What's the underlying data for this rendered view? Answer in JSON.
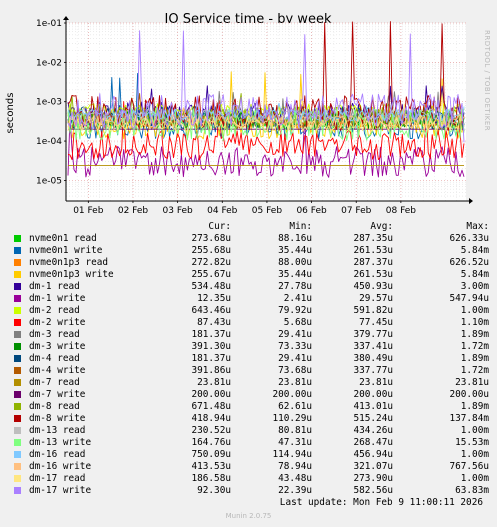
{
  "chart_data": {
    "type": "line",
    "title": "IO Service time - by week",
    "ylabel": "seconds",
    "side_text": "RRDTOOL / TOBI OETIKER",
    "y_scale": "log",
    "ylim": [
      3e-06,
      0.1
    ],
    "y_ticks": [
      {
        "value": 0.1,
        "label": "1e-01"
      },
      {
        "value": 0.01,
        "label": "1e-02"
      },
      {
        "value": 0.001,
        "label": "1e-03"
      },
      {
        "value": 0.0001,
        "label": "1e-04"
      },
      {
        "value": 1e-05,
        "label": "1e-05"
      }
    ],
    "x_start": "2026-01-31T12:00",
    "x_end": "2026-02-09T11:00",
    "x_ticks": [
      {
        "value": "2026-02-01",
        "label": "01 Feb"
      },
      {
        "value": "2026-02-02",
        "label": "02 Feb"
      },
      {
        "value": "2026-02-03",
        "label": "03 Feb"
      },
      {
        "value": "2026-02-04",
        "label": "04 Feb"
      },
      {
        "value": "2026-02-05",
        "label": "05 Feb"
      },
      {
        "value": "2026-02-06",
        "label": "06 Feb"
      },
      {
        "value": "2026-02-07",
        "label": "07 Feb"
      },
      {
        "value": "2026-02-08",
        "label": "08 Feb"
      }
    ],
    "grid": true,
    "legend_columns": {
      "cur": "Cur:",
      "min": "Min:",
      "avg": "Avg:",
      "max": "Max:"
    },
    "series": [
      {
        "name": "nvme0n1 read",
        "color": "#00cc00",
        "cur": "273.68u",
        "min": "88.16u",
        "avg": "287.35u",
        "max": "626.33u"
      },
      {
        "name": "nvme0n1 write",
        "color": "#0066b3",
        "cur": "255.68u",
        "min": "35.44u",
        "avg": "261.53u",
        "max": "5.84m"
      },
      {
        "name": "nvme0n1p3 read",
        "color": "#ff8000",
        "cur": "272.82u",
        "min": "88.00u",
        "avg": "287.37u",
        "max": "626.52u"
      },
      {
        "name": "nvme0n1p3 write",
        "color": "#ffcc00",
        "cur": "255.67u",
        "min": "35.44u",
        "avg": "261.53u",
        "max": "5.84m"
      },
      {
        "name": "dm-1 read",
        "color": "#330099",
        "cur": "534.48u",
        "min": "27.78u",
        "avg": "450.93u",
        "max": "3.00m"
      },
      {
        "name": "dm-1 write",
        "color": "#990099",
        "cur": "12.35u",
        "min": "2.41u",
        "avg": "29.57u",
        "max": "547.94u"
      },
      {
        "name": "dm-2 read",
        "color": "#ccff00",
        "cur": "643.46u",
        "min": "79.92u",
        "avg": "591.82u",
        "max": "1.00m"
      },
      {
        "name": "dm-2 write",
        "color": "#ff0000",
        "cur": "87.43u",
        "min": "5.68u",
        "avg": "77.45u",
        "max": "1.10m"
      },
      {
        "name": "dm-3 read",
        "color": "#808080",
        "cur": "181.37u",
        "min": "29.41u",
        "avg": "379.77u",
        "max": "1.89m"
      },
      {
        "name": "dm-3 write",
        "color": "#008f00",
        "cur": "391.30u",
        "min": "73.33u",
        "avg": "337.41u",
        "max": "1.72m"
      },
      {
        "name": "dm-4 read",
        "color": "#00487d",
        "cur": "181.37u",
        "min": "29.41u",
        "avg": "380.49u",
        "max": "1.89m"
      },
      {
        "name": "dm-4 write",
        "color": "#b35a00",
        "cur": "391.86u",
        "min": "73.68u",
        "avg": "337.77u",
        "max": "1.72m"
      },
      {
        "name": "dm-7 read",
        "color": "#b38f00",
        "cur": "23.81u",
        "min": "23.81u",
        "avg": "23.81u",
        "max": "23.81u"
      },
      {
        "name": "dm-7 write",
        "color": "#6b006b",
        "cur": "200.00u",
        "min": "200.00u",
        "avg": "200.00u",
        "max": "200.00u"
      },
      {
        "name": "dm-8 read",
        "color": "#8fb300",
        "cur": "671.48u",
        "min": "62.61u",
        "avg": "413.01u",
        "max": "1.89m"
      },
      {
        "name": "dm-8 write",
        "color": "#b30000",
        "cur": "418.94u",
        "min": "110.29u",
        "avg": "515.24u",
        "max": "137.84m"
      },
      {
        "name": "dm-13 read",
        "color": "#bebebe",
        "cur": "230.52u",
        "min": "80.81u",
        "avg": "434.26u",
        "max": "1.00m"
      },
      {
        "name": "dm-13 write",
        "color": "#80ff80",
        "cur": "164.76u",
        "min": "47.31u",
        "avg": "268.47u",
        "max": "15.53m"
      },
      {
        "name": "dm-16 read",
        "color": "#80c9ff",
        "cur": "750.09u",
        "min": "114.94u",
        "avg": "456.94u",
        "max": "1.00m"
      },
      {
        "name": "dm-16 write",
        "color": "#ffc080",
        "cur": "413.53u",
        "min": "78.94u",
        "avg": "321.07u",
        "max": "767.56u"
      },
      {
        "name": "dm-17 read",
        "color": "#ffe680",
        "cur": "186.58u",
        "min": "43.48u",
        "avg": "273.90u",
        "max": "1.00m"
      },
      {
        "name": "dm-17 write",
        "color": "#aa80ff",
        "cur": "92.30u",
        "min": "22.39u",
        "avg": "582.56u",
        "max": "63.83m"
      }
    ]
  },
  "last_update": "Last update: Mon Feb  9 11:00:11 2026",
  "footer": "Munin 2.0.75"
}
